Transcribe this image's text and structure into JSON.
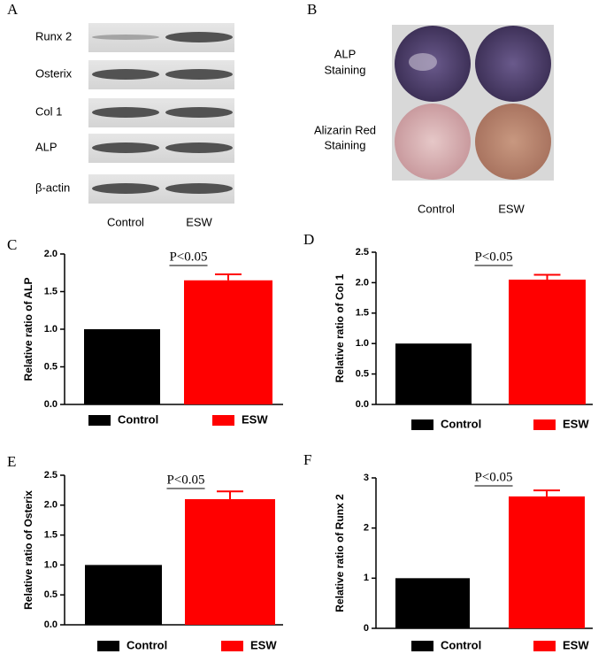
{
  "panel_a": {
    "label": "A",
    "rows": [
      "Runx 2",
      "Osterix",
      "Col 1",
      "ALP",
      "β-actin"
    ],
    "columns": [
      "Control",
      "ESW"
    ]
  },
  "panel_b": {
    "label": "B",
    "rows": [
      [
        "ALP",
        "Staining"
      ],
      [
        "Alizarin Red",
        "Staining"
      ]
    ],
    "columns": [
      "Control",
      "ESW"
    ]
  },
  "chart_data": [
    {
      "type": "bar",
      "panel": "C",
      "ylabel": "Relative ratio of ALP",
      "annotation": "P<0.05",
      "categories": [
        "Control",
        "ESW"
      ],
      "values": [
        1.0,
        1.65
      ],
      "errors": [
        0,
        0.08
      ],
      "colors": [
        "#000000",
        "#ff0000"
      ],
      "ylim": [
        0,
        2.0
      ],
      "yticks": [
        {
          "value": 0,
          "label": "0.0"
        },
        {
          "value": 0.5,
          "label": "0.5"
        },
        {
          "value": 1,
          "label": "1.0"
        },
        {
          "value": 1.5,
          "label": "1.5"
        },
        {
          "value": 2,
          "label": "2.0"
        }
      ],
      "legend": "bottom"
    },
    {
      "type": "bar",
      "panel": "D",
      "ylabel": "Relative ratio of Col 1",
      "annotation": "P<0.05",
      "categories": [
        "Control",
        "ESW"
      ],
      "values": [
        1.0,
        2.05
      ],
      "errors": [
        0,
        0.08
      ],
      "colors": [
        "#000000",
        "#ff0000"
      ],
      "ylim": [
        0,
        2.5
      ],
      "yticks": [
        {
          "value": 0,
          "label": "0.0"
        },
        {
          "value": 0.5,
          "label": "0.5"
        },
        {
          "value": 1,
          "label": "1.0"
        },
        {
          "value": 1.5,
          "label": "1.5"
        },
        {
          "value": 2,
          "label": "2.0"
        },
        {
          "value": 2.5,
          "label": "2.5"
        }
      ],
      "legend": "bottom"
    },
    {
      "type": "bar",
      "panel": "E",
      "ylabel": "Relative ratio of Osterix",
      "annotation": "P<0.05",
      "categories": [
        "Control",
        "ESW"
      ],
      "values": [
        1.0,
        2.1
      ],
      "errors": [
        0,
        0.13
      ],
      "colors": [
        "#000000",
        "#ff0000"
      ],
      "ylim": [
        0,
        2.5
      ],
      "yticks": [
        {
          "value": 0,
          "label": "0.0"
        },
        {
          "value": 0.5,
          "label": "0.5"
        },
        {
          "value": 1,
          "label": "1.0"
        },
        {
          "value": 1.5,
          "label": "1.5"
        },
        {
          "value": 2,
          "label": "2.0"
        },
        {
          "value": 2.5,
          "label": "2.5"
        }
      ],
      "legend": "bottom"
    },
    {
      "type": "bar",
      "panel": "F",
      "ylabel": "Relative ratio of Runx 2",
      "annotation": "P<0.05",
      "categories": [
        "Control",
        "ESW"
      ],
      "values": [
        1.0,
        2.63
      ],
      "errors": [
        0,
        0.12
      ],
      "colors": [
        "#000000",
        "#ff0000"
      ],
      "ylim": [
        0,
        3
      ],
      "yticks": [
        0,
        1,
        2,
        3
      ],
      "legend": "bottom"
    }
  ]
}
